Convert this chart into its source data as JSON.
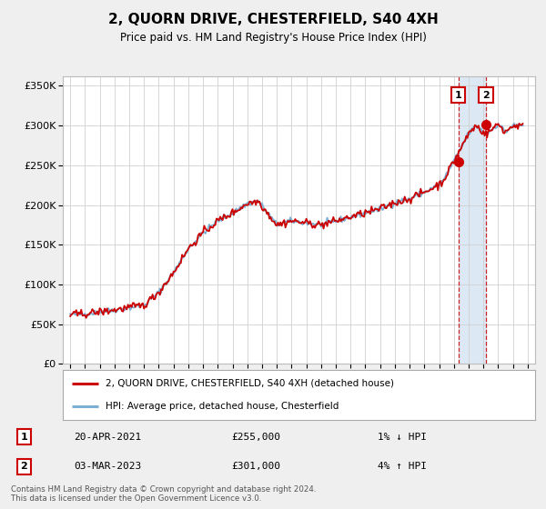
{
  "title": "2, QUORN DRIVE, CHESTERFIELD, S40 4XH",
  "subtitle": "Price paid vs. HM Land Registry's House Price Index (HPI)",
  "property_label": "2, QUORN DRIVE, CHESTERFIELD, S40 4XH (detached house)",
  "hpi_label": "HPI: Average price, detached house, Chesterfield",
  "footnote": "Contains HM Land Registry data © Crown copyright and database right 2024.\nThis data is licensed under the Open Government Licence v3.0.",
  "sale1_date": "20-APR-2021",
  "sale1_price": 255000,
  "sale1_hpi": "1% ↓ HPI",
  "sale2_date": "03-MAR-2023",
  "sale2_price": 301000,
  "sale2_hpi": "4% ↑ HPI",
  "property_color": "#cc0000",
  "hpi_color": "#7bafd4",
  "shade_color": "#dce9f5",
  "marker_fill": "#cc0000",
  "box_edge_color": "#cc0000",
  "sale1_year": 2021.29,
  "sale2_year": 2023.17,
  "ylim_min": 0,
  "ylim_max": 362000,
  "xlim_min": 1994.5,
  "xlim_max": 2026.5,
  "bg_color": "#efefef",
  "plot_bg_color": "#ffffff",
  "grid_color": "#d0d0d0"
}
